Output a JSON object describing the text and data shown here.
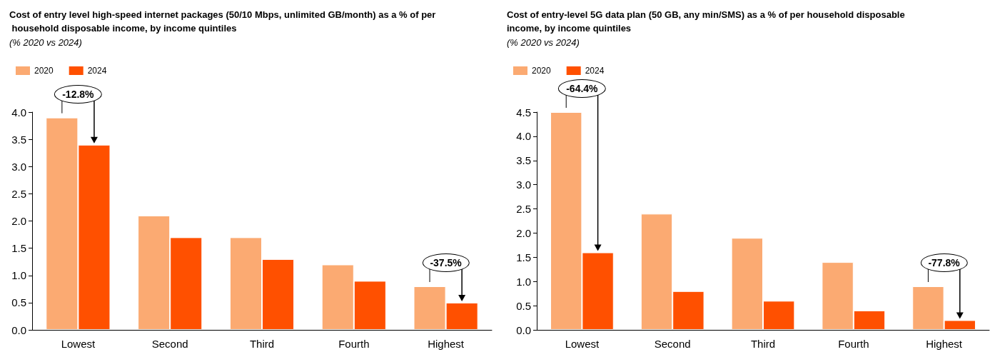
{
  "chart_data": [
    {
      "type": "bar",
      "title": "Cost of entry level high-speed internet packages (50/10 Mbps, unlimited GB/month) as a % of per household disposable income, by income quintiles",
      "subtitle": "(% 2020 vs 2024)",
      "categories": [
        "Lowest",
        "Second",
        "Third",
        "Fourth",
        "Highest"
      ],
      "series": [
        {
          "name": "2020",
          "color": "#fbaa72",
          "values": [
            3.9,
            2.1,
            1.7,
            1.2,
            0.8
          ]
        },
        {
          "name": "2024",
          "color": "#ff5000",
          "values": [
            3.4,
            1.7,
            1.3,
            0.9,
            0.5
          ]
        }
      ],
      "ylim": [
        0,
        4
      ],
      "yticks": [
        {
          "value": 0,
          "label": "0.0"
        },
        0.5,
        {
          "value": 1,
          "label": "1.0"
        },
        1.5,
        {
          "value": 2,
          "label": "2.0"
        },
        2.5,
        {
          "value": 3,
          "label": "3.0"
        },
        3.5,
        {
          "value": 4,
          "label": "4.0"
        }
      ],
      "grid": false,
      "legend": "top left",
      "annotations": [
        "-12.8%",
        "-37.5%"
      ]
    },
    {
      "type": "bar",
      "title": "Cost of entry-level 5G data plan (50 GB, any min/SMS) as a % of per household disposable income, by income quintiles",
      "subtitle": "(% 2020 vs 2024)",
      "categories": [
        "Lowest",
        "Second",
        "Third",
        "Fourth",
        "Highest"
      ],
      "series": [
        {
          "name": "2020",
          "color": "#fbaa72",
          "values": [
            4.5,
            2.4,
            1.9,
            1.4,
            0.9
          ]
        },
        {
          "name": "2024",
          "color": "#ff5000",
          "values": [
            1.6,
            0.8,
            0.6,
            0.4,
            0.2
          ]
        }
      ],
      "ylim": [
        0,
        4.5
      ],
      "yticks": [
        {
          "value": 0,
          "label": "0.0"
        },
        0.5,
        {
          "value": 1,
          "label": "1.0"
        },
        1.5,
        {
          "value": 2,
          "label": "2.0"
        },
        2.5,
        {
          "value": 3,
          "label": "3.0"
        },
        3.5,
        {
          "value": 4,
          "label": "4.0"
        },
        4.5
      ],
      "grid": false,
      "legend": "top left",
      "annotations": [
        "-64.4%",
        "-77.8%"
      ]
    }
  ]
}
